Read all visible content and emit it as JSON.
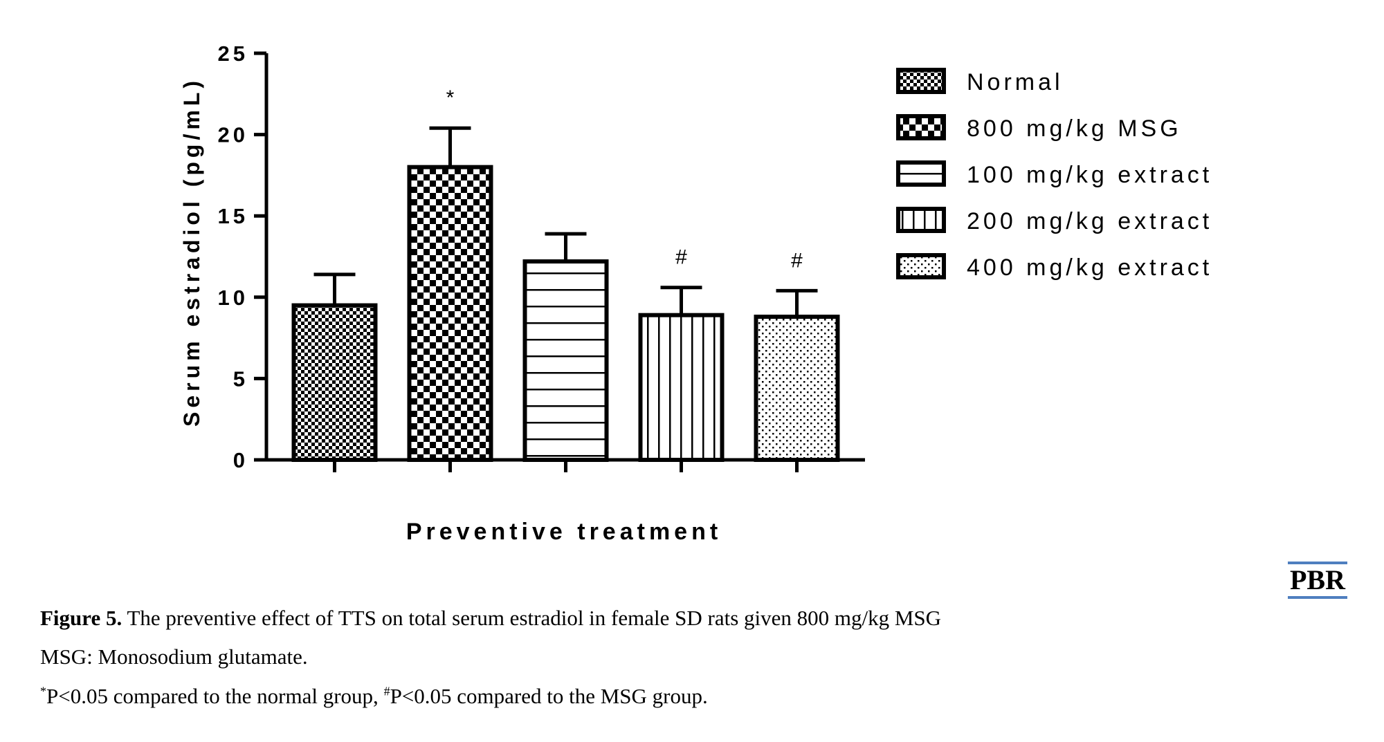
{
  "chart_data": {
    "type": "bar",
    "categories": [
      "Normal",
      "800 mg/kg MSG",
      "100 mg/kg extract",
      "200 mg/kg extract",
      "400 mg/kg extract"
    ],
    "values": [
      9.5,
      18.0,
      12.2,
      8.9,
      8.8
    ],
    "errors": [
      1.9,
      2.4,
      1.7,
      1.7,
      1.6
    ],
    "significance": [
      "",
      "*",
      "",
      "#",
      "#"
    ],
    "patterns": [
      "fine-checker",
      "large-checker",
      "horizontal-stripes",
      "vertical-stripes",
      "dotted"
    ],
    "xlabel": "Preventive treatment",
    "ylabel": "Serum estradiol (pg/mL)",
    "ylim": [
      0,
      25
    ],
    "yticks": [
      0,
      5,
      10,
      15,
      20,
      25
    ],
    "ytick_labels": [
      "0",
      "5",
      "10",
      "15",
      "20",
      "25"
    ],
    "legend": {
      "placement": "right",
      "entries": [
        "Normal",
        "800 mg/kg MSG",
        "100 mg/kg extract",
        "200 mg/kg extract",
        "400 mg/kg extract"
      ]
    },
    "grid": false
  },
  "caption": {
    "figure_label": "Figure 5.",
    "title": "The preventive effect of TTS on total serum estradiol in female SD rats given 800 mg/kg MSG",
    "abbrev": "MSG: Monosodium glutamate.",
    "note_star_mark": "*",
    "note_star": "P<0.05 compared to the normal group, ",
    "note_hash_mark": "#",
    "note_hash": "P<0.05 compared to the MSG group."
  },
  "logo": {
    "text": "PBR",
    "accent": "#4f7fbf"
  }
}
